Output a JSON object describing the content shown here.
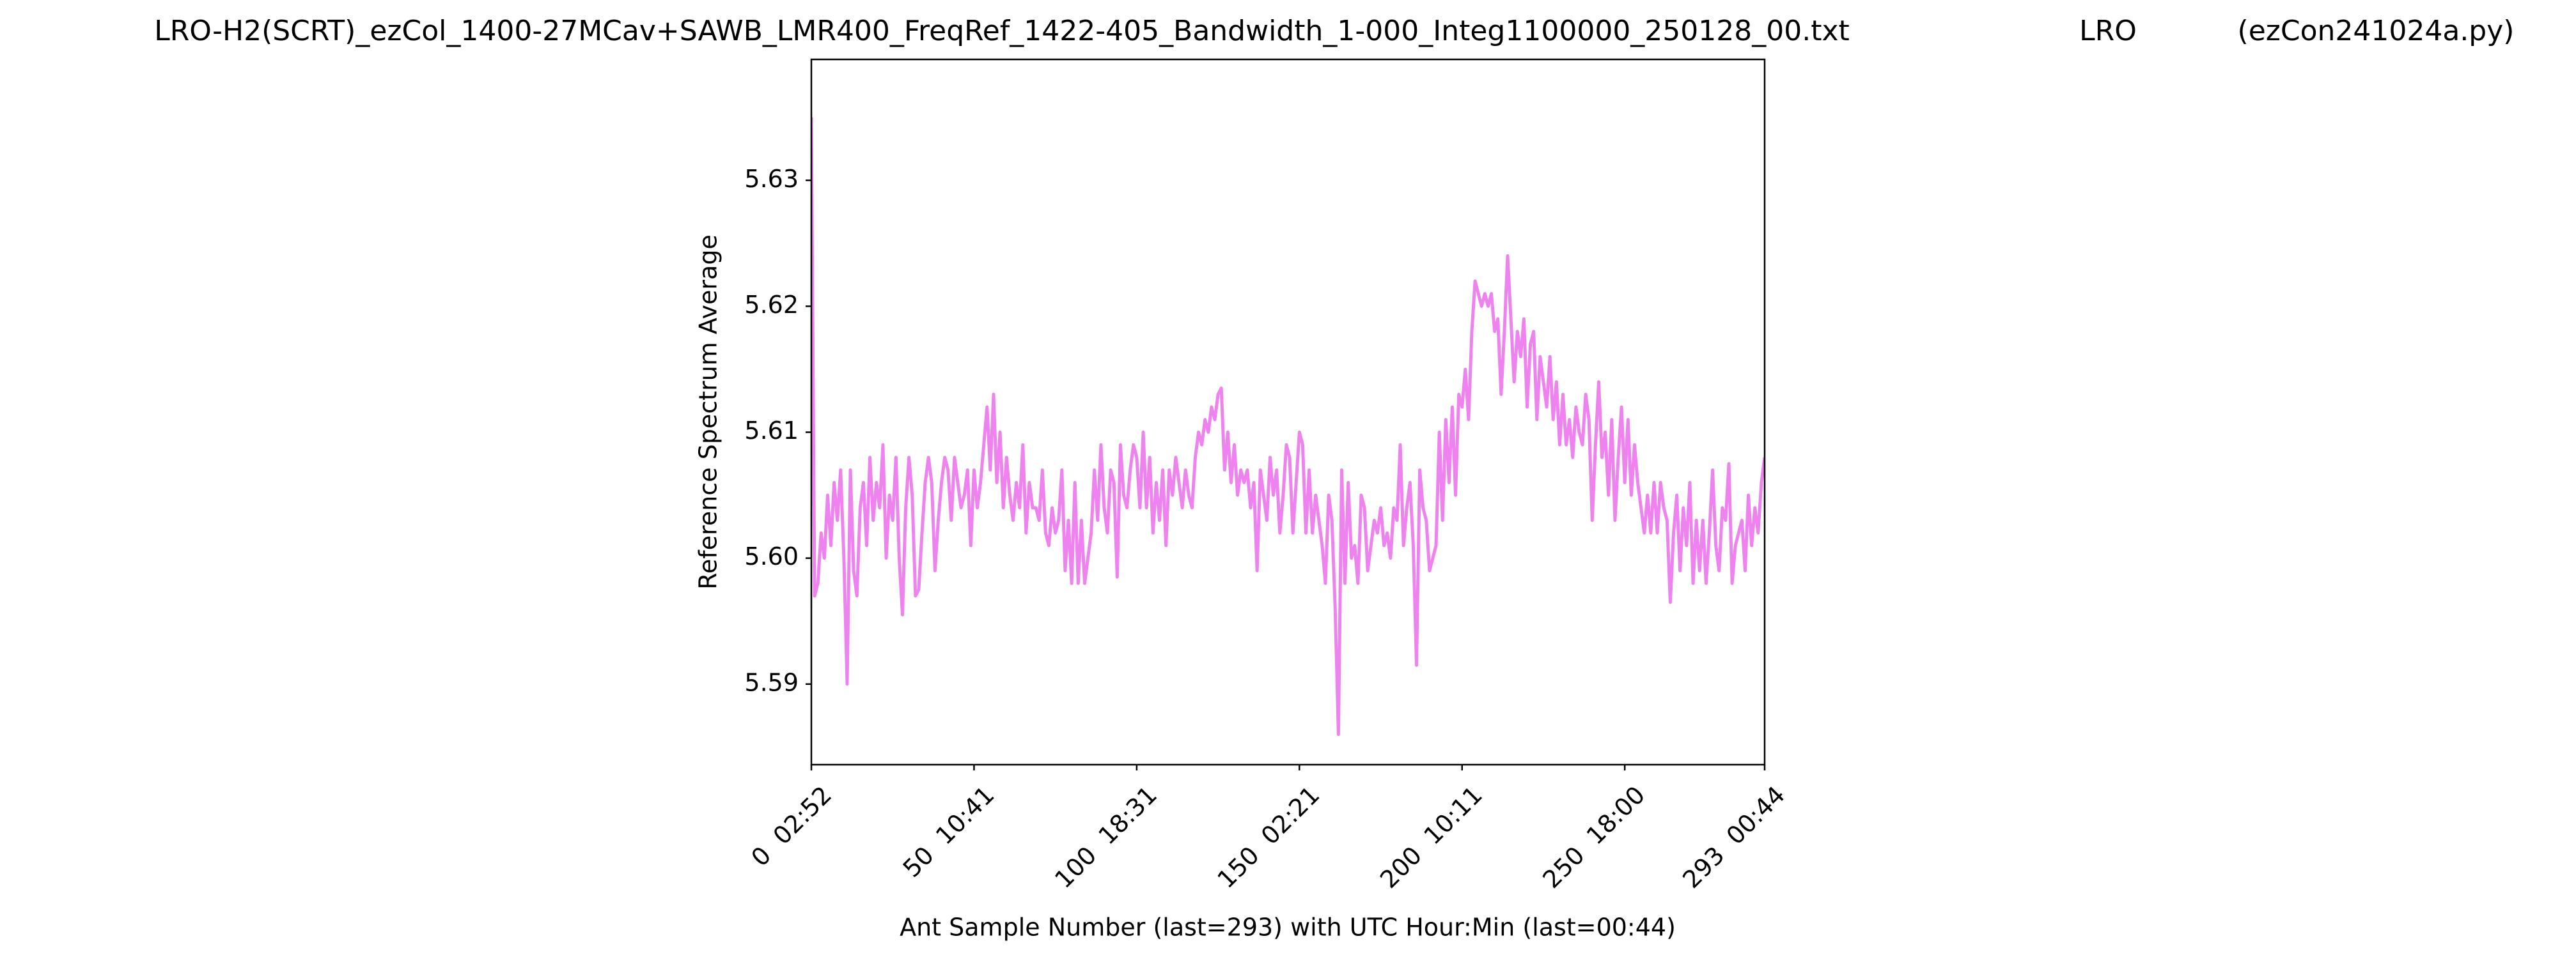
{
  "chart_data": {
    "type": "line",
    "header_texts": [
      "LRO-H2(SCRT)_ezCol_1400-27MCav+SAWB_LMR400_FreqRef_1422-405_Bandwidth_1-000_Integ1100000_250128_00.txt",
      "LRO",
      "(ezCon241024a.py)"
    ],
    "x_label": "Ant Sample Number (last=293) with UTC Hour:Min (last=00:44)",
    "y_label": "Reference Spectrum Average",
    "xlim": [
      0,
      293
    ],
    "ylim": [
      5.5836,
      5.6396
    ],
    "xticks": [
      {
        "value": 0,
        "label": "0  02:52"
      },
      {
        "value": 50,
        "label": "50  10:41"
      },
      {
        "value": 100,
        "label": "100  18:31"
      },
      {
        "value": 150,
        "label": "150  02:21"
      },
      {
        "value": 200,
        "label": "200  10:11"
      },
      {
        "value": 250,
        "label": "250  18:00"
      },
      {
        "value": 293,
        "label": "293  00:44"
      }
    ],
    "yticks": [
      5.59,
      5.6,
      5.61,
      5.62,
      5.63
    ],
    "ytick_labels": [
      "5.59",
      "5.60",
      "5.61",
      "5.62",
      "5.63"
    ],
    "grid": false,
    "series": [
      {
        "color": "#ee82ee",
        "x": [
          0,
          1,
          2,
          3,
          4,
          5,
          6,
          7,
          8,
          9,
          10,
          11,
          12,
          13,
          14,
          15,
          16,
          17,
          18,
          19,
          20,
          21,
          22,
          23,
          24,
          25,
          26,
          27,
          28,
          29,
          30,
          31,
          32,
          33,
          34,
          35,
          36,
          37,
          38,
          39,
          40,
          41,
          42,
          43,
          44,
          45,
          46,
          47,
          48,
          49,
          50,
          51,
          52,
          53,
          54,
          55,
          56,
          57,
          58,
          59,
          60,
          61,
          62,
          63,
          64,
          65,
          66,
          67,
          68,
          69,
          70,
          71,
          72,
          73,
          74,
          75,
          76,
          77,
          78,
          79,
          80,
          81,
          82,
          83,
          84,
          85,
          86,
          87,
          88,
          89,
          90,
          91,
          92,
          93,
          94,
          95,
          96,
          97,
          98,
          99,
          100,
          101,
          102,
          103,
          104,
          105,
          106,
          107,
          108,
          109,
          110,
          111,
          112,
          113,
          114,
          115,
          116,
          117,
          118,
          119,
          120,
          121,
          122,
          123,
          124,
          125,
          126,
          127,
          128,
          129,
          130,
          131,
          132,
          133,
          134,
          135,
          136,
          137,
          138,
          139,
          140,
          141,
          142,
          143,
          144,
          145,
          146,
          147,
          148,
          149,
          150,
          151,
          152,
          153,
          154,
          155,
          156,
          157,
          158,
          159,
          160,
          161,
          162,
          163,
          164,
          165,
          166,
          167,
          168,
          169,
          170,
          171,
          172,
          173,
          174,
          175,
          176,
          177,
          178,
          179,
          180,
          181,
          182,
          183,
          184,
          185,
          186,
          187,
          188,
          189,
          190,
          191,
          192,
          193,
          194,
          195,
          196,
          197,
          198,
          199,
          200,
          201,
          202,
          203,
          204,
          205,
          206,
          207,
          208,
          209,
          210,
          211,
          212,
          213,
          214,
          215,
          216,
          217,
          218,
          219,
          220,
          221,
          222,
          223,
          224,
          225,
          226,
          227,
          228,
          229,
          230,
          231,
          232,
          233,
          234,
          235,
          236,
          237,
          238,
          239,
          240,
          241,
          242,
          243,
          244,
          245,
          246,
          247,
          248,
          249,
          250,
          251,
          252,
          253,
          254,
          255,
          256,
          257,
          258,
          259,
          260,
          261,
          262,
          263,
          264,
          265,
          266,
          267,
          268,
          269,
          270,
          271,
          272,
          273,
          274,
          275,
          276,
          277,
          278,
          279,
          280,
          281,
          282,
          283,
          284,
          285,
          286,
          287,
          288,
          289,
          290,
          291,
          292,
          293
        ],
        "values": [
          5.635,
          5.597,
          5.598,
          5.602,
          5.6,
          5.605,
          5.601,
          5.606,
          5.603,
          5.607,
          5.6,
          5.59,
          5.607,
          5.599,
          5.597,
          5.604,
          5.606,
          5.601,
          5.608,
          5.603,
          5.606,
          5.604,
          5.609,
          5.6,
          5.605,
          5.603,
          5.608,
          5.6,
          5.5955,
          5.604,
          5.608,
          5.605,
          5.597,
          5.5975,
          5.602,
          5.606,
          5.608,
          5.606,
          5.599,
          5.603,
          5.606,
          5.608,
          5.607,
          5.603,
          5.608,
          5.606,
          5.604,
          5.605,
          5.607,
          5.601,
          5.607,
          5.604,
          5.606,
          5.609,
          5.612,
          5.607,
          5.613,
          5.606,
          5.61,
          5.604,
          5.608,
          5.605,
          5.603,
          5.606,
          5.604,
          5.609,
          5.602,
          5.606,
          5.604,
          5.604,
          5.603,
          5.607,
          5.602,
          5.601,
          5.604,
          5.602,
          5.603,
          5.607,
          5.599,
          5.603,
          5.598,
          5.606,
          5.598,
          5.603,
          5.598,
          5.6,
          5.602,
          5.607,
          5.603,
          5.609,
          5.604,
          5.602,
          5.607,
          5.606,
          5.5985,
          5.609,
          5.605,
          5.604,
          5.607,
          5.609,
          5.608,
          5.604,
          5.61,
          5.604,
          5.608,
          5.602,
          5.606,
          5.603,
          5.607,
          5.601,
          5.607,
          5.605,
          5.608,
          5.606,
          5.604,
          5.607,
          5.605,
          5.604,
          5.608,
          5.61,
          5.609,
          5.611,
          5.61,
          5.612,
          5.611,
          5.613,
          5.6135,
          5.607,
          5.61,
          5.606,
          5.609,
          5.605,
          5.607,
          5.606,
          5.607,
          5.604,
          5.606,
          5.599,
          5.607,
          5.605,
          5.603,
          5.608,
          5.605,
          5.607,
          5.602,
          5.605,
          5.609,
          5.608,
          5.602,
          5.606,
          5.61,
          5.609,
          5.602,
          5.607,
          5.602,
          5.605,
          5.603,
          5.601,
          5.598,
          5.605,
          5.603,
          5.596,
          5.586,
          5.607,
          5.598,
          5.606,
          5.6,
          5.601,
          5.598,
          5.605,
          5.604,
          5.599,
          5.601,
          5.603,
          5.602,
          5.604,
          5.601,
          5.602,
          5.6,
          5.604,
          5.603,
          5.609,
          5.601,
          5.604,
          5.606,
          5.601,
          5.5915,
          5.607,
          5.604,
          5.603,
          5.599,
          5.6,
          5.601,
          5.61,
          5.603,
          5.611,
          5.606,
          5.612,
          5.605,
          5.613,
          5.612,
          5.615,
          5.611,
          5.618,
          5.622,
          5.621,
          5.62,
          5.621,
          5.62,
          5.621,
          5.618,
          5.619,
          5.613,
          5.618,
          5.624,
          5.619,
          5.614,
          5.618,
          5.616,
          5.619,
          5.612,
          5.617,
          5.618,
          5.611,
          5.616,
          5.614,
          5.612,
          5.616,
          5.611,
          5.614,
          5.609,
          5.613,
          5.609,
          5.611,
          5.608,
          5.612,
          5.61,
          5.609,
          5.613,
          5.611,
          5.603,
          5.609,
          5.614,
          5.608,
          5.61,
          5.605,
          5.611,
          5.603,
          5.608,
          5.612,
          5.606,
          5.611,
          5.605,
          5.609,
          5.606,
          5.604,
          5.602,
          5.605,
          5.602,
          5.606,
          5.602,
          5.606,
          5.604,
          5.603,
          5.5965,
          5.602,
          5.605,
          5.599,
          5.604,
          5.601,
          5.606,
          5.598,
          5.603,
          5.599,
          5.603,
          5.598,
          5.602,
          5.607,
          5.601,
          5.599,
          5.604,
          5.603,
          5.6075,
          5.598,
          5.601,
          5.602,
          5.603,
          5.599,
          5.605,
          5.601,
          5.604,
          5.602,
          5.606,
          5.608
        ]
      }
    ]
  }
}
